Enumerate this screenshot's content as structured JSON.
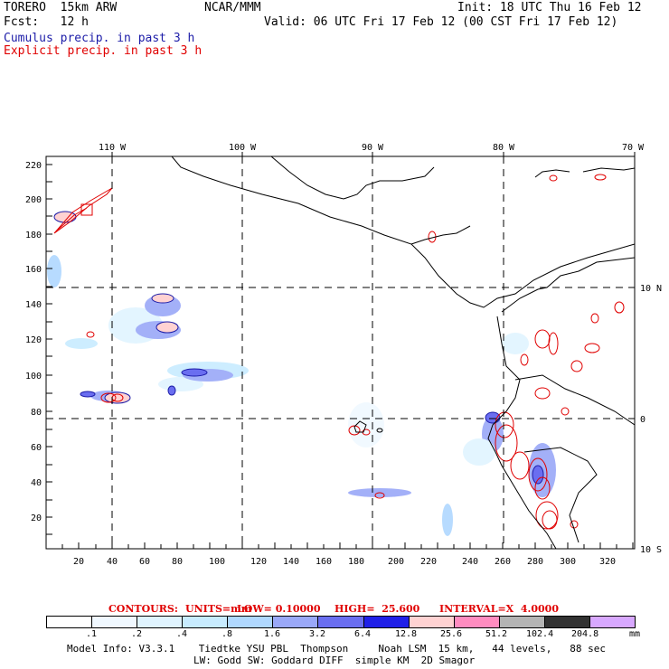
{
  "header": {
    "model": "TORERO  15km ARW",
    "org": "NCAR/MMM",
    "init": "Init: 18 UTC Thu 16 Feb 12",
    "fcst": "Fcst:   12 h",
    "valid": "Valid: 06 UTC Fri 17 Feb 12 (00 CST Fri 17 Feb 12)",
    "legend_cumulus": "Cumulus precip. in past 3 h",
    "legend_explicit": "Explicit precip. in past 3 h"
  },
  "map": {
    "lon_labels": [
      "110 W",
      "100 W",
      "90 W",
      "80 W",
      "70 W"
    ],
    "lat_labels": [
      "10 N",
      "0",
      "10 S"
    ],
    "x_ticks": [
      "20",
      "40",
      "60",
      "80",
      "100",
      "120",
      "140",
      "160",
      "180",
      "200",
      "220",
      "240",
      "260",
      "280",
      "300",
      "320"
    ],
    "y_ticks": [
      "220",
      "200",
      "180",
      "160",
      "140",
      "120",
      "100",
      "80",
      "60",
      "40",
      "20"
    ],
    "colors": {
      "grid": "#000000",
      "coast": "#000000",
      "explicit": "#e00000",
      "cumulus": "#0000e0"
    }
  },
  "contours_line": {
    "label": "CONTOURS:",
    "units": "UNITS=mm",
    "low": "LOW= 0.10000",
    "high": "HIGH=  25.600",
    "interval": "INTERVAL=X  4.0000"
  },
  "colorbar": {
    "unit": "mm",
    "labels": [
      ".1",
      ".2",
      ".4",
      ".8",
      "1.6",
      "3.2",
      "6.4",
      "12.8",
      "25.6",
      "51.2",
      "102.4",
      "204.8"
    ],
    "colors": [
      "#ffffff",
      "#f0f8ff",
      "#e0f4ff",
      "#c8ecff",
      "#b0d8ff",
      "#9aa8f8",
      "#6a6ef0",
      "#2020e8",
      "#ffd2d2",
      "#ff8cc0",
      "#b4b4b4",
      "#323232",
      "#d8a8ff"
    ]
  },
  "footer": {
    "line1": "Model Info: V3.3.1    Tiedtke YSU PBL  Thompson     Noah LSM  15 km,   44 levels,   88 sec",
    "line2": "LW: Godd SW: Goddard DIFF  simple KM  2D Smagor"
  }
}
